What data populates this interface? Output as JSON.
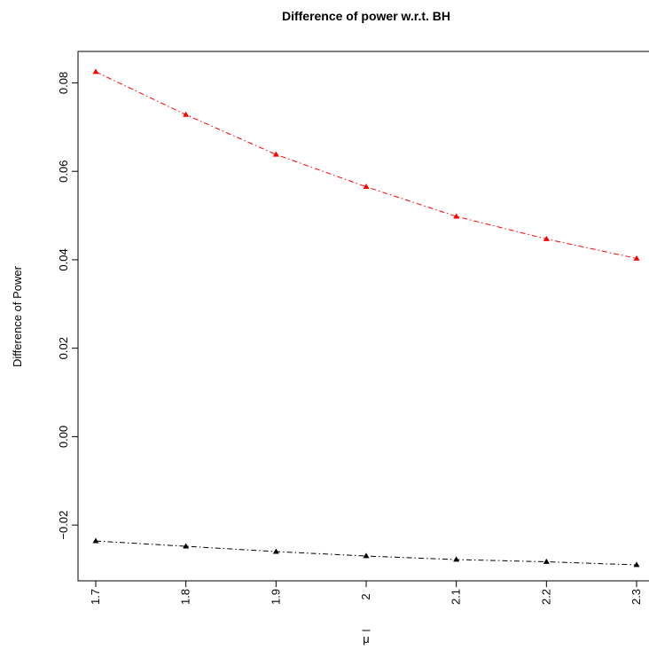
{
  "chart_data": {
    "type": "line",
    "title": "Difference of power w.r.t. BH",
    "xlabel": "μ",
    "xlabel_overline": true,
    "ylabel": "Difference of Power",
    "x": [
      1.7,
      1.8,
      1.9,
      2.0,
      2.1,
      2.2,
      2.3
    ],
    "x_tick_labels": [
      "1.7",
      "1.8",
      "1.9",
      "2",
      "2.1",
      "2.2",
      "2.3"
    ],
    "xlim": [
      1.7,
      2.3
    ],
    "ylim": [
      -0.0295,
      0.0835
    ],
    "y_ticks": [
      -0.02,
      0.0,
      0.02,
      0.04,
      0.06,
      0.08
    ],
    "y_tick_labels": [
      "−0.02",
      "0.00",
      "0.02",
      "0.04",
      "0.06",
      "0.08"
    ],
    "grid": false,
    "legend": "none",
    "series": [
      {
        "color": "#ff0000",
        "line_style": "dotdash",
        "marker": "triangle",
        "values": [
          0.0825,
          0.0728,
          0.0638,
          0.0565,
          0.0498,
          0.0447,
          0.0403
        ]
      },
      {
        "color": "#000000",
        "line_style": "dotdash",
        "marker": "triangle",
        "values": [
          -0.0236,
          -0.0248,
          -0.026,
          -0.027,
          -0.0278,
          -0.0283,
          -0.029
        ]
      }
    ]
  }
}
